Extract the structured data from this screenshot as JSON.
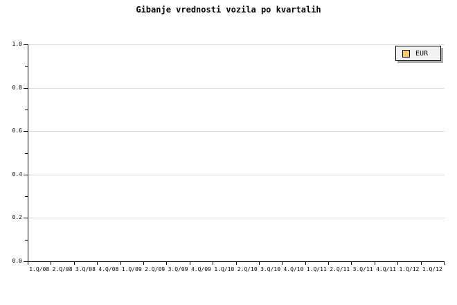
{
  "chart_data": {
    "type": "line",
    "title": "Gibanje vrednosti vozila po kvartalih",
    "categories": [
      "1.Q/08",
      "2.Q/08",
      "3.Q/08",
      "4.Q/08",
      "1.Q/09",
      "2.Q/09",
      "3.Q/09",
      "4.Q/09",
      "1.Q/10",
      "2.Q/10",
      "3.Q/10",
      "4.Q/10",
      "1.Q/11",
      "2.Q/11",
      "3.Q/11",
      "4.Q/11",
      "1.Q/12",
      "1.Q/12"
    ],
    "series": [
      {
        "name": "EUR",
        "color": "#FACC66",
        "values": []
      }
    ],
    "xlabel": "",
    "ylabel": "",
    "ylim": [
      0.0,
      1.0
    ],
    "ytick_labels": [
      "0.0",
      "0.2",
      "0.4",
      "0.6",
      "0.8",
      "1.0"
    ],
    "ytick_minor_step": 0.1,
    "grid": true,
    "legend_position": "top-right"
  },
  "colors": {
    "background": "#FFFFFF",
    "axis": "#000000",
    "gridline": "#DCDCDC",
    "legend_bg": "#F2F2F2",
    "legend_border": "#000000",
    "legend_shadow": "#AAAAAA",
    "series_eur": "#FACC66"
  }
}
